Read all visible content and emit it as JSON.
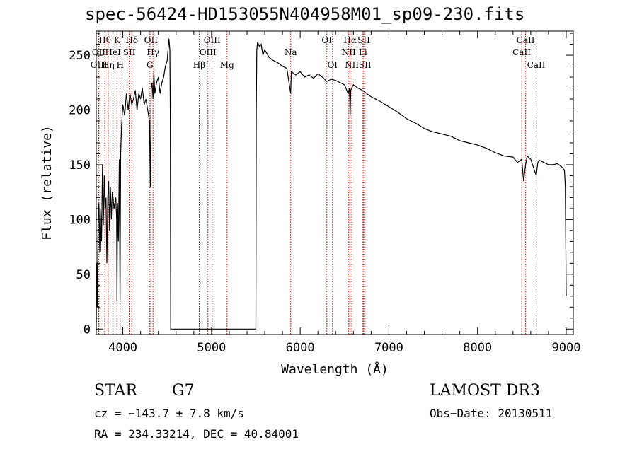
{
  "chart_data": {
    "type": "line",
    "title": "spec-56424-HD153055N404958M01_sp09-230.fits",
    "xlabel": "Wavelength (Å)",
    "ylabel": "Flux (relative)",
    "xlim": [
      3700,
      9080
    ],
    "ylim": [
      -5,
      272
    ],
    "xticks": [
      4000,
      5000,
      6000,
      7000,
      8000,
      9000
    ],
    "yticks": [
      0,
      50,
      100,
      150,
      200,
      250
    ],
    "series": [
      {
        "name": "flux",
        "x": [
          3700,
          3705,
          3712,
          3720,
          3730,
          3740,
          3750,
          3760,
          3770,
          3780,
          3790,
          3800,
          3810,
          3820,
          3830,
          3840,
          3850,
          3860,
          3870,
          3880,
          3890,
          3900,
          3910,
          3920,
          3930,
          3934,
          3940,
          3950,
          3960,
          3968,
          3975,
          3985,
          4000,
          4020,
          4040,
          4060,
          4080,
          4101,
          4120,
          4140,
          4160,
          4180,
          4200,
          4220,
          4240,
          4260,
          4280,
          4300,
          4310,
          4320,
          4330,
          4340,
          4350,
          4360,
          4380,
          4400,
          4420,
          4440,
          4460,
          4480,
          4500,
          4520,
          4530,
          4535,
          4540,
          5500,
          5505,
          5510,
          5520,
          5540,
          5560,
          5580,
          5600,
          5650,
          5700,
          5750,
          5800,
          5850,
          5893,
          5900,
          5950,
          6000,
          6050,
          6100,
          6150,
          6200,
          6250,
          6300,
          6350,
          6400,
          6450,
          6500,
          6540,
          6555,
          6563,
          6570,
          6580,
          6600,
          6650,
          6700,
          6750,
          6800,
          6900,
          7000,
          7100,
          7200,
          7300,
          7400,
          7500,
          7600,
          7700,
          7800,
          7900,
          8000,
          8100,
          8200,
          8300,
          8400,
          8450,
          8498,
          8520,
          8542,
          8560,
          8600,
          8662,
          8680,
          8700,
          8750,
          8800,
          8850,
          8900,
          8950,
          8980,
          8990,
          9000
        ],
        "y": [
          0,
          60,
          20,
          95,
          115,
          70,
          110,
          80,
          150,
          95,
          140,
          110,
          120,
          60,
          120,
          135,
          90,
          130,
          100,
          125,
          120,
          110,
          115,
          120,
          100,
          25,
          115,
          80,
          155,
          25,
          160,
          185,
          205,
          195,
          215,
          200,
          215,
          205,
          210,
          218,
          200,
          215,
          210,
          220,
          205,
          210,
          200,
          190,
          130,
          220,
          225,
          210,
          235,
          215,
          225,
          230,
          215,
          225,
          230,
          240,
          245,
          265,
          255,
          200,
          0,
          0,
          200,
          255,
          262,
          258,
          260,
          250,
          255,
          248,
          245,
          243,
          240,
          238,
          215,
          235,
          232,
          235,
          230,
          232,
          229,
          233,
          230,
          226,
          228,
          227,
          225,
          223,
          215,
          220,
          195,
          218,
          220,
          223,
          220,
          218,
          215,
          212,
          208,
          203,
          198,
          192,
          188,
          183,
          180,
          178,
          176,
          172,
          170,
          168,
          165,
          161,
          158,
          157,
          152,
          155,
          135,
          150,
          158,
          155,
          140,
          152,
          154,
          152,
          150,
          150,
          151,
          148,
          145,
          130,
          30
        ]
      }
    ],
    "lines": [
      {
        "label": "Hθ",
        "wave": 3797,
        "row": 1
      },
      {
        "label": "OII",
        "wave": 3727,
        "row": 2
      },
      {
        "label": "OIII",
        "wave": 3730,
        "row": 3
      },
      {
        "label": "K",
        "wave": 3934,
        "row": 1
      },
      {
        "label": "HeI",
        "wave": 3889,
        "row": 2
      },
      {
        "label": "Hη",
        "wave": 3835,
        "row": 3
      },
      {
        "label": "Hδ",
        "wave": 4101,
        "row": 1
      },
      {
        "label": "SII",
        "wave": 4072,
        "row": 2
      },
      {
        "label": "H",
        "wave": 3969,
        "row": 3
      },
      {
        "label": "OII",
        "wave": 4317,
        "row": 1
      },
      {
        "label": "Hγ",
        "wave": 4340,
        "row": 2
      },
      {
        "label": "G",
        "wave": 4305,
        "row": 3
      },
      {
        "label": "OIII",
        "wave": 5007,
        "row": 1
      },
      {
        "label": "OIII",
        "wave": 4959,
        "row": 2
      },
      {
        "label": "Hβ",
        "wave": 4861,
        "row": 3
      },
      {
        "label": "Mg",
        "wave": 5175,
        "row": 3
      },
      {
        "label": "Na",
        "wave": 5893,
        "row": 2
      },
      {
        "label": "OI",
        "wave": 6300,
        "row": 1
      },
      {
        "label": "OI",
        "wave": 6364,
        "row": 3
      },
      {
        "label": "Hα",
        "wave": 6563,
        "row": 1
      },
      {
        "label": "SII",
        "wave": 6717,
        "row": 1
      },
      {
        "label": "NII",
        "wave": 6548,
        "row": 2
      },
      {
        "label": "Li",
        "wave": 6708,
        "row": 2
      },
      {
        "label": "NII",
        "wave": 6583,
        "row": 3
      },
      {
        "label": "SII",
        "wave": 6731,
        "row": 3
      },
      {
        "label": "CaII",
        "wave": 8542,
        "row": 1
      },
      {
        "label": "CaII",
        "wave": 8498,
        "row": 2
      },
      {
        "label": "CaII",
        "wave": 8662,
        "row": 3
      }
    ]
  },
  "info": {
    "class": "STAR",
    "subclass": "G7",
    "survey": "LAMOST DR3",
    "cz": "cz = −143.7 ± 7.8 km/s",
    "obs_date": "Obs−Date: 20130511",
    "radec": "RA = 234.33214, DEC =  40.84001"
  }
}
